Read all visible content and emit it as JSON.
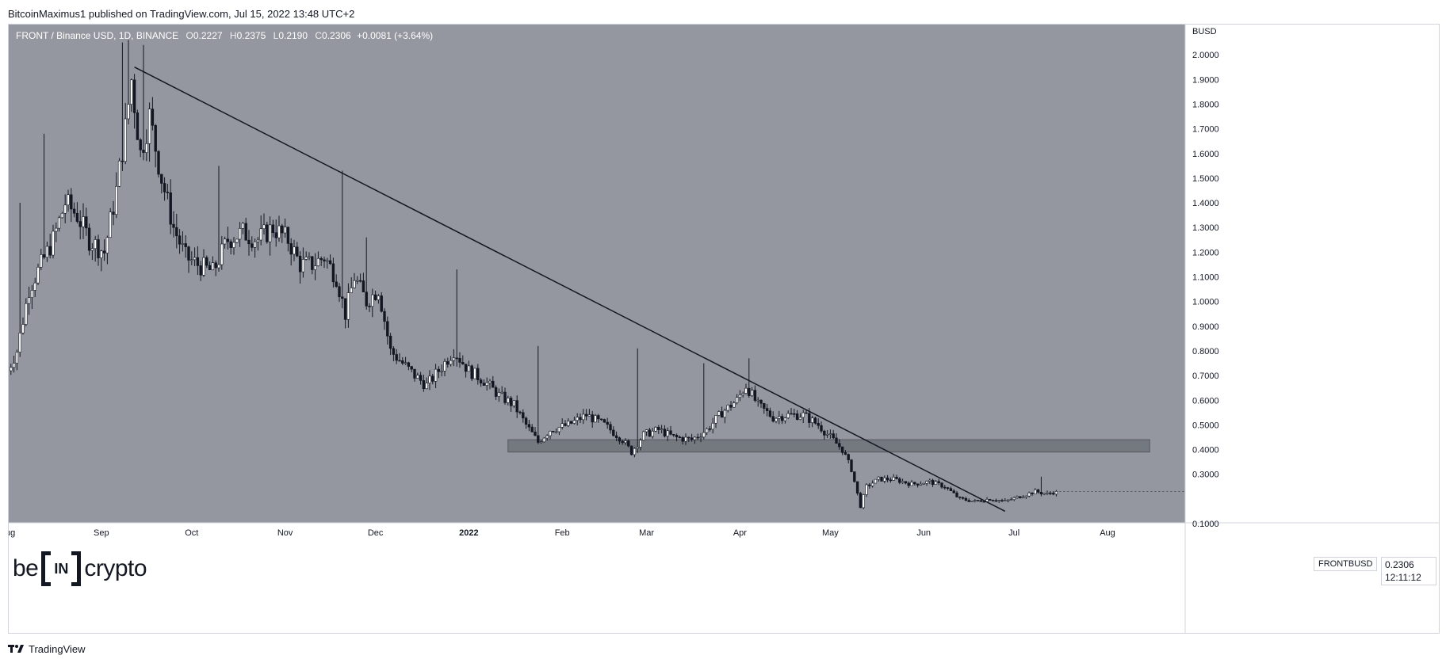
{
  "publisher_line": "BitcoinMaximus1 published on TradingView.com, Jul 15, 2022 13:48 UTC+2",
  "legend": {
    "symbol": "FRONT / Binance USD, 1D, BINANCE",
    "o_label": "O",
    "o": "0.2227",
    "h_label": "H",
    "h": "0.2375",
    "l_label": "L",
    "l": "0.2190",
    "c_label": "C",
    "c": "0.2306",
    "change": "+0.0081 (+3.64%)"
  },
  "price_axis": {
    "currency": "BUSD",
    "ticks": [
      "2.0000",
      "1.9000",
      "1.8000",
      "1.7000",
      "1.6000",
      "1.5000",
      "1.4000",
      "1.3000",
      "1.2000",
      "1.1000",
      "1.0000",
      "0.9000",
      "0.8000",
      "0.7000",
      "0.6000",
      "0.5000",
      "0.4000",
      "0.3000",
      "0.1000"
    ]
  },
  "time_axis": {
    "labels": [
      "ug",
      "Sep",
      "Oct",
      "Nov",
      "Dec",
      "2022",
      "Feb",
      "Mar",
      "Apr",
      "May",
      "Jun",
      "Jul",
      "Aug"
    ]
  },
  "symbol_tag": "FRONTBUSD",
  "last_price": "0.2306",
  "countdown": "12:11:12",
  "logo": {
    "pre": "be",
    "mid": "IN",
    "post": "crypto"
  },
  "footer_text": "TradingView",
  "colors": {
    "plot_bg": "#94979f",
    "candle": "#ffffff",
    "wick": "#131722",
    "trendline": "#131722",
    "zone": "#6f7279",
    "grid": "#a0a3aa"
  },
  "chart_data": {
    "type": "candlestick",
    "title": "FRONT / Binance USD, 1D, BINANCE",
    "ylabel": "BUSD",
    "ylim": [
      0.09,
      2.07
    ],
    "y_ticks": [
      2.0,
      1.9,
      1.8,
      1.7,
      1.6,
      1.5,
      1.4,
      1.3,
      1.2,
      1.1,
      1.0,
      0.9,
      0.8,
      0.7,
      0.6,
      0.5,
      0.4,
      0.3,
      0.1
    ],
    "x_range": [
      "2021-08-01",
      "2022-08-15"
    ],
    "x_ticks": [
      {
        "label": "ug",
        "date": "2021-08-01"
      },
      {
        "label": "Sep",
        "date": "2021-09-01"
      },
      {
        "label": "Oct",
        "date": "2021-10-01"
      },
      {
        "label": "Nov",
        "date": "2021-11-01"
      },
      {
        "label": "Dec",
        "date": "2021-12-01"
      },
      {
        "label": "2022",
        "date": "2022-01-01"
      },
      {
        "label": "Feb",
        "date": "2022-02-01"
      },
      {
        "label": "Mar",
        "date": "2022-03-01"
      },
      {
        "label": "Apr",
        "date": "2022-04-01"
      },
      {
        "label": "May",
        "date": "2022-05-01"
      },
      {
        "label": "Jun",
        "date": "2022-06-01"
      },
      {
        "label": "Jul",
        "date": "2022-07-01"
      },
      {
        "label": "Aug",
        "date": "2022-08-01"
      }
    ],
    "close_path": [
      {
        "date": "2021-08-01",
        "close": 0.72
      },
      {
        "date": "2021-08-04",
        "close": 0.8
      },
      {
        "date": "2021-08-08",
        "close": 1.05
      },
      {
        "date": "2021-08-12",
        "close": 1.15
      },
      {
        "date": "2021-08-16",
        "close": 1.25
      },
      {
        "date": "2021-08-20",
        "close": 1.4
      },
      {
        "date": "2021-08-24",
        "close": 1.35
      },
      {
        "date": "2021-08-28",
        "close": 1.25
      },
      {
        "date": "2021-09-02",
        "close": 1.2
      },
      {
        "date": "2021-09-06",
        "close": 1.45
      },
      {
        "date": "2021-09-09",
        "close": 1.7
      },
      {
        "date": "2021-09-11",
        "close": 1.9
      },
      {
        "date": "2021-09-14",
        "close": 1.6
      },
      {
        "date": "2021-09-17",
        "close": 1.75
      },
      {
        "date": "2021-09-21",
        "close": 1.5
      },
      {
        "date": "2021-09-25",
        "close": 1.3
      },
      {
        "date": "2021-09-29",
        "close": 1.18
      },
      {
        "date": "2021-10-03",
        "close": 1.15
      },
      {
        "date": "2021-10-08",
        "close": 1.12
      },
      {
        "date": "2021-10-13",
        "close": 1.25
      },
      {
        "date": "2021-10-18",
        "close": 1.28
      },
      {
        "date": "2021-10-23",
        "close": 1.25
      },
      {
        "date": "2021-10-28",
        "close": 1.3
      },
      {
        "date": "2021-11-02",
        "close": 1.25
      },
      {
        "date": "2021-11-06",
        "close": 1.15
      },
      {
        "date": "2021-11-10",
        "close": 1.15
      },
      {
        "date": "2021-11-14",
        "close": 1.18
      },
      {
        "date": "2021-11-18",
        "close": 1.1
      },
      {
        "date": "2021-11-21",
        "close": 0.95
      },
      {
        "date": "2021-11-24",
        "close": 1.1
      },
      {
        "date": "2021-11-28",
        "close": 1.0
      },
      {
        "date": "2021-12-02",
        "close": 1.05
      },
      {
        "date": "2021-12-06",
        "close": 0.8
      },
      {
        "date": "2021-12-10",
        "close": 0.75
      },
      {
        "date": "2021-12-14",
        "close": 0.7
      },
      {
        "date": "2021-12-18",
        "close": 0.66
      },
      {
        "date": "2021-12-22",
        "close": 0.72
      },
      {
        "date": "2021-12-27",
        "close": 0.8
      },
      {
        "date": "2022-01-01",
        "close": 0.72
      },
      {
        "date": "2022-01-06",
        "close": 0.68
      },
      {
        "date": "2022-01-11",
        "close": 0.62
      },
      {
        "date": "2022-01-16",
        "close": 0.58
      },
      {
        "date": "2022-01-20",
        "close": 0.5
      },
      {
        "date": "2022-01-24",
        "close": 0.43
      },
      {
        "date": "2022-01-28",
        "close": 0.48
      },
      {
        "date": "2022-02-03",
        "close": 0.5
      },
      {
        "date": "2022-02-09",
        "close": 0.54
      },
      {
        "date": "2022-02-15",
        "close": 0.5
      },
      {
        "date": "2022-02-21",
        "close": 0.44
      },
      {
        "date": "2022-02-24",
        "close": 0.39
      },
      {
        "date": "2022-02-28",
        "close": 0.46
      },
      {
        "date": "2022-03-05",
        "close": 0.48
      },
      {
        "date": "2022-03-10",
        "close": 0.45
      },
      {
        "date": "2022-03-16",
        "close": 0.44
      },
      {
        "date": "2022-03-21",
        "close": 0.48
      },
      {
        "date": "2022-03-26",
        "close": 0.55
      },
      {
        "date": "2022-03-31",
        "close": 0.6
      },
      {
        "date": "2022-04-03",
        "close": 0.66
      },
      {
        "date": "2022-04-07",
        "close": 0.58
      },
      {
        "date": "2022-04-12",
        "close": 0.53
      },
      {
        "date": "2022-04-17",
        "close": 0.54
      },
      {
        "date": "2022-04-22",
        "close": 0.54
      },
      {
        "date": "2022-04-27",
        "close": 0.5
      },
      {
        "date": "2022-05-01",
        "close": 0.45
      },
      {
        "date": "2022-05-05",
        "close": 0.4
      },
      {
        "date": "2022-05-08",
        "close": 0.32
      },
      {
        "date": "2022-05-11",
        "close": 0.17
      },
      {
        "date": "2022-05-13",
        "close": 0.25
      },
      {
        "date": "2022-05-17",
        "close": 0.28
      },
      {
        "date": "2022-05-22",
        "close": 0.28
      },
      {
        "date": "2022-05-28",
        "close": 0.26
      },
      {
        "date": "2022-06-03",
        "close": 0.27
      },
      {
        "date": "2022-06-08",
        "close": 0.25
      },
      {
        "date": "2022-06-13",
        "close": 0.2
      },
      {
        "date": "2022-06-18",
        "close": 0.19
      },
      {
        "date": "2022-06-23",
        "close": 0.2
      },
      {
        "date": "2022-06-28",
        "close": 0.19
      },
      {
        "date": "2022-07-03",
        "close": 0.21
      },
      {
        "date": "2022-07-08",
        "close": 0.23
      },
      {
        "date": "2022-07-12",
        "close": 0.22
      },
      {
        "date": "2022-07-15",
        "close": 0.2306
      }
    ],
    "wick_spikes": [
      {
        "date": "2021-08-05",
        "high": 1.4
      },
      {
        "date": "2021-08-13",
        "high": 1.68
      },
      {
        "date": "2021-09-08",
        "high": 2.05
      },
      {
        "date": "2021-09-10",
        "high": 2.06
      },
      {
        "date": "2021-09-15",
        "high": 2.04
      },
      {
        "date": "2021-10-10",
        "high": 1.55
      },
      {
        "date": "2021-11-02",
        "high": 1.3
      },
      {
        "date": "2021-11-20",
        "high": 1.53
      },
      {
        "date": "2021-11-28",
        "high": 1.26
      },
      {
        "date": "2021-12-28",
        "high": 1.13
      },
      {
        "date": "2022-01-24",
        "high": 0.82
      },
      {
        "date": "2022-02-26",
        "high": 0.81
      },
      {
        "date": "2022-03-20",
        "high": 0.75
      },
      {
        "date": "2022-04-04",
        "high": 0.77
      },
      {
        "date": "2022-07-10",
        "high": 0.29
      }
    ],
    "trendline": {
      "start": {
        "date": "2021-09-12",
        "price": 1.95
      },
      "end": {
        "date": "2022-06-28",
        "price": 0.15
      }
    },
    "support_zone": {
      "from_date": "2022-01-14",
      "to_date": "2022-08-15",
      "low": 0.39,
      "high": 0.44
    },
    "last_price": 0.2306
  }
}
